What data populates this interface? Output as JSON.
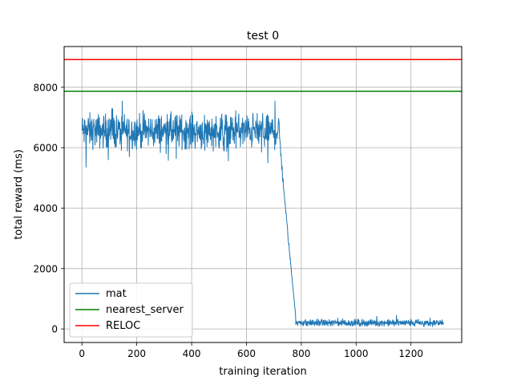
{
  "chart_data": {
    "type": "line",
    "title": "test 0",
    "xlabel": "training iteration",
    "ylabel": "total reward (ms)",
    "xlim": [
      -65,
      1385
    ],
    "ylim": [
      -450,
      9350
    ],
    "x_ticks": [
      0,
      200,
      400,
      600,
      800,
      1000,
      1200
    ],
    "y_ticks": [
      0,
      2000,
      4000,
      6000,
      8000
    ],
    "grid": true,
    "legend_position": "lower-left",
    "series": [
      {
        "name": "mat",
        "color": "#1f77b4",
        "kind": "noisy-line",
        "x_range": [
          0,
          1320
        ],
        "segments": [
          {
            "x_start": 0,
            "x_end": 720,
            "mean": 6550,
            "noise": 380,
            "min": 5300,
            "max": 7550
          },
          {
            "x_start": 720,
            "x_end": 780,
            "decline_from": 6500,
            "decline_to": 400
          },
          {
            "x_start": 780,
            "x_end": 1320,
            "mean": 200,
            "noise": 80,
            "min": 90,
            "max": 900
          }
        ]
      },
      {
        "name": "nearest_server",
        "color": "#008000",
        "kind": "hline",
        "y": 7870
      },
      {
        "name": "RELOC",
        "color": "#ff0000",
        "kind": "hline",
        "y": 8920
      }
    ]
  }
}
